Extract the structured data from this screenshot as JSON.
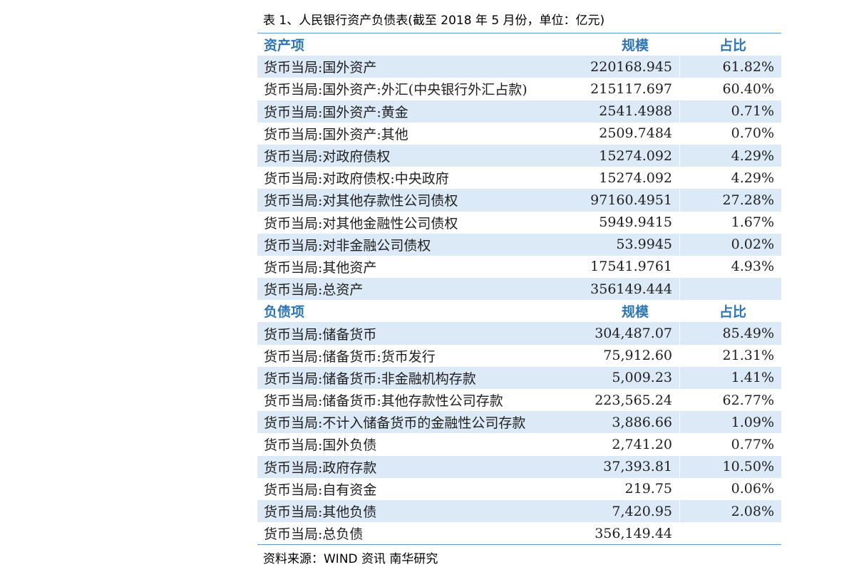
{
  "caption": "表 1、人民银行资产负债表(截至 2018 年 5 月份，单位：亿元)",
  "assets": {
    "header": {
      "name": "资产项",
      "value": "规模",
      "ratio": "占比"
    },
    "rows": [
      {
        "name": "货币当局:国外资产",
        "value": "220168.945",
        "ratio": "61.82%"
      },
      {
        "name": "货币当局:国外资产:外汇(中央银行外汇占款)",
        "value": "215117.697",
        "ratio": "60.40%"
      },
      {
        "name": "货币当局:国外资产:黄金",
        "value": "2541.4988",
        "ratio": "0.71%"
      },
      {
        "name": "货币当局:国外资产:其他",
        "value": "2509.7484",
        "ratio": "0.70%"
      },
      {
        "name": "货币当局:对政府债权",
        "value": "15274.092",
        "ratio": "4.29%"
      },
      {
        "name": "货币当局:对政府债权:中央政府",
        "value": "15274.092",
        "ratio": "4.29%"
      },
      {
        "name": "货币当局:对其他存款性公司债权",
        "value": "97160.4951",
        "ratio": "27.28%"
      },
      {
        "name": "货币当局:对其他金融性公司债权",
        "value": "5949.9415",
        "ratio": "1.67%"
      },
      {
        "name": "货币当局:对非金融公司债权",
        "value": "53.9945",
        "ratio": "0.02%"
      },
      {
        "name": "货币当局:其他资产",
        "value": "17541.9761",
        "ratio": "4.93%"
      },
      {
        "name": "货币当局:总资产",
        "value": "356149.444",
        "ratio": ""
      }
    ]
  },
  "liabilities": {
    "header": {
      "name": "负债项",
      "value": "规模",
      "ratio": "占比"
    },
    "rows": [
      {
        "name": "货币当局:储备货币",
        "value": "304,487.07",
        "ratio": "85.49%"
      },
      {
        "name": "货币当局:储备货币:货币发行",
        "value": "75,912.60",
        "ratio": "21.31%"
      },
      {
        "name": "货币当局:储备货币:非金融机构存款",
        "value": "5,009.23",
        "ratio": "1.41%"
      },
      {
        "name": "货币当局:储备货币:其他存款性公司存款",
        "value": "223,565.24",
        "ratio": "62.77%"
      },
      {
        "name": "货币当局:不计入储备货币的金融性公司存款",
        "value": "3,886.66",
        "ratio": "1.09%"
      },
      {
        "name": "货币当局:国外负债",
        "value": "2,741.20",
        "ratio": "0.77%"
      },
      {
        "name": "货币当局:政府存款",
        "value": "37,393.81",
        "ratio": "10.50%"
      },
      {
        "name": "货币当局:自有资金",
        "value": "219.75",
        "ratio": "0.06%"
      },
      {
        "name": "货币当局:其他负债",
        "value": "7,420.95",
        "ratio": "2.08%"
      },
      {
        "name": "货币当局:总负债",
        "value": "356,149.44",
        "ratio": ""
      }
    ]
  },
  "source": "资料来源：WIND 资讯  南华研究",
  "colors": {
    "header_text": "#2e75b6",
    "band": "#dce9f6",
    "rule": "#5b9bd5"
  }
}
